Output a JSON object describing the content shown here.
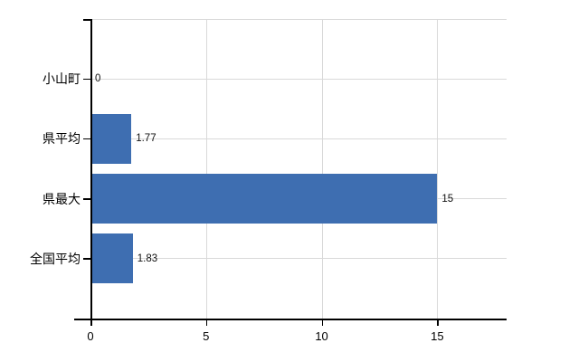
{
  "chart_data": {
    "type": "bar",
    "orientation": "horizontal",
    "title": "",
    "xlabel": "",
    "ylabel": "",
    "categories": [
      "小山町",
      "県平均",
      "県最大",
      "全国平均"
    ],
    "values": [
      0,
      1.77,
      15,
      1.83
    ],
    "value_labels": [
      "0",
      "1.77",
      "15",
      "1.83"
    ],
    "xlim": [
      0,
      18
    ],
    "xticks": [
      0,
      5,
      10,
      15
    ],
    "xtick_labels": [
      "0",
      "5",
      "10",
      "15"
    ],
    "grid": true,
    "legend": false,
    "colors": {
      "bar": "#3e6eb1",
      "grid": "#d9d9d9",
      "axis": "#000000",
      "text": "#000000",
      "background": "#ffffff"
    }
  }
}
